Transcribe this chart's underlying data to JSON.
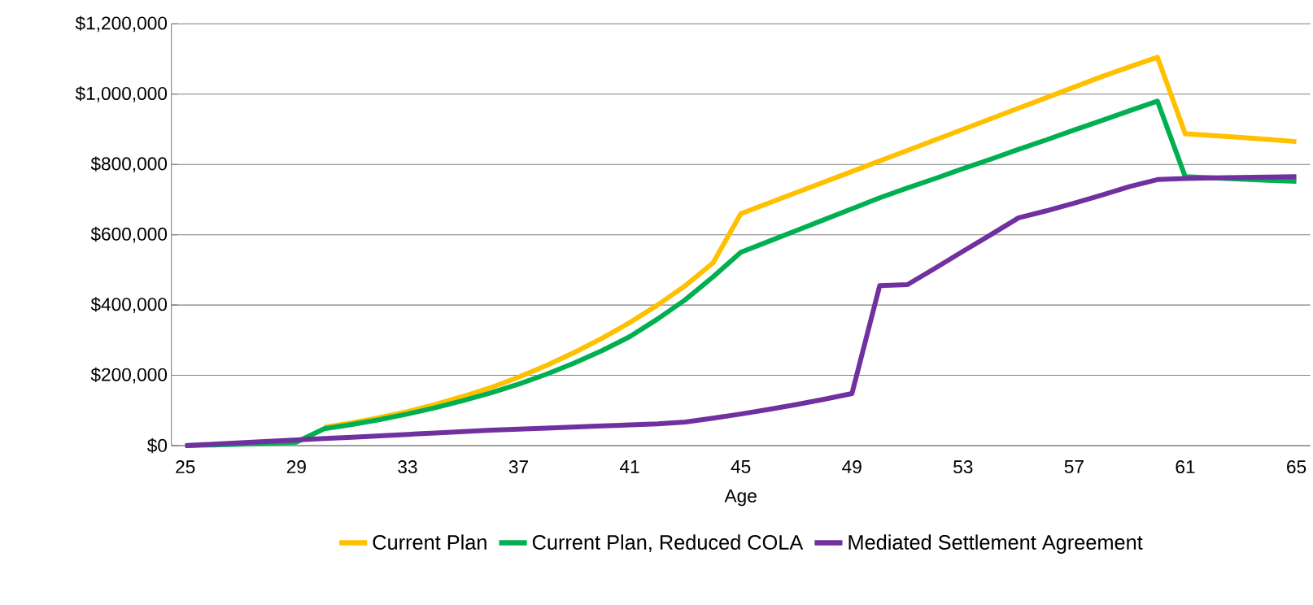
{
  "chart_data": {
    "type": "line",
    "xlabel": "Age",
    "categories": [
      "25",
      null,
      null,
      null,
      "29",
      null,
      null,
      null,
      "33",
      null,
      null,
      null,
      "37",
      null,
      null,
      null,
      "41",
      null,
      null,
      null,
      "45",
      null,
      null,
      null,
      "49",
      null,
      null,
      null,
      "53",
      null,
      null,
      null,
      "57",
      null,
      null,
      null,
      "61",
      null,
      null,
      null,
      "65"
    ],
    "series": [
      {
        "name": "Current Plan",
        "color": "#ffc000",
        "values": [
          null,
          null,
          null,
          null,
          null,
          52000,
          65000,
          80000,
          97000,
          117000,
          140000,
          165000,
          195000,
          228000,
          265000,
          305000,
          350000,
          400000,
          455000,
          520000,
          660000,
          690000,
          720000,
          750000,
          780000,
          810000,
          840000,
          870000,
          900000,
          930000,
          960000,
          990000,
          1020000,
          1050000,
          1078000,
          1105000,
          887000,
          882000,
          877000,
          871000,
          865000
        ]
      },
      {
        "name": "Current Plan, Reduced COLA",
        "color": "#00b050",
        "values": [
          0,
          2000,
          4000,
          7000,
          10000,
          48000,
          60000,
          74000,
          90000,
          108000,
          128000,
          150000,
          175000,
          203000,
          235000,
          270000,
          310000,
          360000,
          415000,
          480000,
          550000,
          581000,
          612000,
          643000,
          674000,
          705000,
          733000,
          760000,
          788000,
          815000,
          843000,
          870000,
          898000,
          925000,
          953000,
          980000,
          765000,
          762000,
          758000,
          755000,
          752000
        ]
      },
      {
        "name": "Mediated Settlement Agreement",
        "color": "#7030a0",
        "values": [
          0,
          4000,
          8000,
          12000,
          16000,
          20000,
          24000,
          28000,
          32000,
          36000,
          40000,
          44000,
          47000,
          50000,
          53000,
          56000,
          59000,
          62000,
          67000,
          78000,
          90000,
          103000,
          117000,
          132000,
          148000,
          455000,
          458000,
          505000,
          553000,
          600000,
          648000,
          668000,
          690000,
          713000,
          737000,
          757000,
          760000,
          762000,
          763000,
          764000,
          765000
        ]
      }
    ],
    "ylim": [
      0,
      1200000
    ],
    "yticks": [
      {
        "value": 0,
        "label": "$0"
      },
      {
        "value": 200000,
        "label": "$200,000"
      },
      {
        "value": 400000,
        "label": "$400,000"
      },
      {
        "value": 600000,
        "label": "$600,000"
      },
      {
        "value": 800000,
        "label": "$800,000"
      },
      {
        "value": 1000000,
        "label": "$1,000,000"
      },
      {
        "value": 1200000,
        "label": "$1,200,000"
      }
    ],
    "grid": "y",
    "legend": "bottom",
    "marker": "none",
    "line_style": "solid"
  }
}
